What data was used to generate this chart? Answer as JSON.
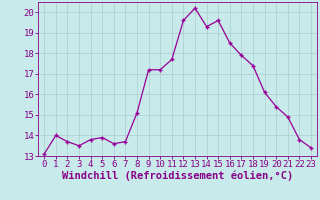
{
  "x": [
    0,
    1,
    2,
    3,
    4,
    5,
    6,
    7,
    8,
    9,
    10,
    11,
    12,
    13,
    14,
    15,
    16,
    17,
    18,
    19,
    20,
    21,
    22,
    23
  ],
  "y": [
    13.1,
    14.0,
    13.7,
    13.5,
    13.8,
    13.9,
    13.6,
    13.7,
    15.1,
    17.2,
    17.2,
    17.7,
    19.6,
    20.2,
    19.3,
    19.6,
    18.5,
    17.9,
    17.4,
    16.1,
    15.4,
    14.9,
    13.8,
    13.4
  ],
  "line_color": "#990099",
  "marker": "+",
  "bg_color": "#c8eaea",
  "grid_color": "#aacccc",
  "xlabel": "Windchill (Refroidissement éolien,°C)",
  "ylim": [
    13,
    20.5
  ],
  "yticks": [
    13,
    14,
    15,
    16,
    17,
    18,
    19,
    20
  ],
  "xticks": [
    0,
    1,
    2,
    3,
    4,
    5,
    6,
    7,
    8,
    9,
    10,
    11,
    12,
    13,
    14,
    15,
    16,
    17,
    18,
    19,
    20,
    21,
    22,
    23
  ],
  "font_color": "#880088",
  "font_size": 6.5,
  "xlabel_fontsize": 7.5,
  "line_width": 0.9,
  "marker_size": 3.5,
  "xlim": [
    -0.5,
    23.5
  ]
}
